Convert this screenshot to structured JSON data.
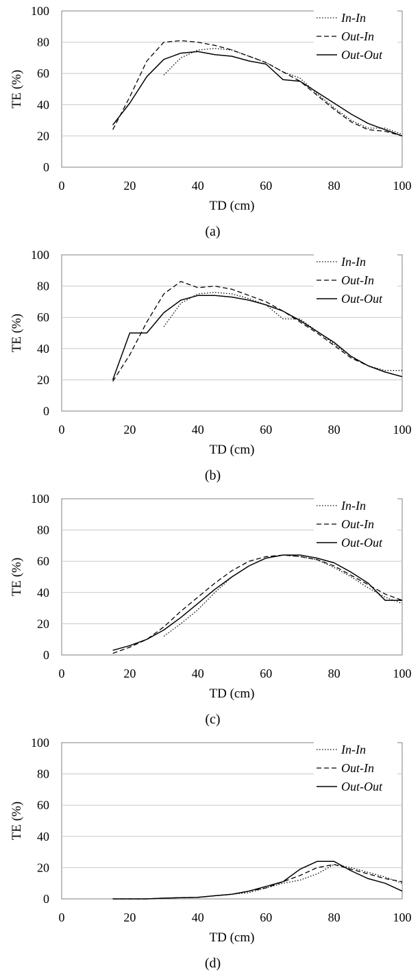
{
  "chart_data": [
    {
      "type": "line",
      "caption": "(a)",
      "xlabel": "TD (cm)",
      "ylabel": "TE (%)",
      "xlim": [
        0,
        100
      ],
      "ylim": [
        0,
        100
      ],
      "xticks": [
        "0",
        "20",
        "40",
        "60",
        "80",
        "100"
      ],
      "yticks": [
        "0",
        "20",
        "40",
        "60",
        "80",
        "100"
      ],
      "grid": "horizontal",
      "legend": "top-right",
      "series": [
        {
          "name": "In-In",
          "style": "dotted",
          "x": [
            30,
            35,
            40,
            45,
            50,
            55,
            60,
            65,
            70,
            75,
            80,
            85,
            90,
            95,
            100
          ],
          "y": [
            59,
            70,
            75,
            76,
            75,
            71,
            67,
            61,
            57,
            47,
            38,
            30,
            25,
            25,
            21
          ]
        },
        {
          "name": "Out-In",
          "style": "dashed",
          "x": [
            15,
            20,
            25,
            30,
            35,
            40,
            45,
            50,
            55,
            60,
            65,
            70,
            75,
            80,
            85,
            90,
            95,
            100
          ],
          "y": [
            24,
            45,
            68,
            80,
            81,
            80,
            78,
            75,
            71,
            67,
            61,
            55,
            46,
            37,
            29,
            24,
            23,
            20
          ]
        },
        {
          "name": "Out-Out",
          "style": "solid",
          "x": [
            15,
            20,
            25,
            30,
            35,
            40,
            45,
            50,
            55,
            60,
            65,
            70,
            75,
            80,
            85,
            90,
            95,
            100
          ],
          "y": [
            27,
            41,
            58,
            69,
            73,
            74,
            72,
            71,
            68,
            66,
            56,
            55,
            48,
            41,
            34,
            28,
            24,
            20
          ]
        }
      ]
    },
    {
      "type": "line",
      "caption": "(b)",
      "xlabel": "TD (cm)",
      "ylabel": "TE (%)",
      "xlim": [
        0,
        100
      ],
      "ylim": [
        0,
        100
      ],
      "xticks": [
        "0",
        "20",
        "40",
        "60",
        "80",
        "100"
      ],
      "yticks": [
        "0",
        "20",
        "40",
        "60",
        "80",
        "100"
      ],
      "grid": "horizontal",
      "legend": "top-right",
      "series": [
        {
          "name": "In-In",
          "style": "dotted",
          "x": [
            30,
            35,
            40,
            45,
            50,
            55,
            60,
            65,
            70,
            75,
            80,
            85,
            90,
            95,
            100
          ],
          "y": [
            54,
            69,
            75,
            76,
            75,
            72,
            68,
            59,
            59,
            51,
            43,
            35,
            29,
            26,
            26
          ]
        },
        {
          "name": "Out-In",
          "style": "dashed",
          "x": [
            15,
            20,
            25,
            30,
            35,
            40,
            45,
            50,
            55,
            60,
            65,
            70,
            75,
            80,
            85,
            90,
            95,
            100
          ],
          "y": [
            19,
            36,
            57,
            75,
            83,
            79,
            80,
            78,
            74,
            70,
            64,
            57,
            50,
            42,
            34,
            29,
            25,
            22
          ]
        },
        {
          "name": "Out-Out",
          "style": "solid",
          "x": [
            15,
            20,
            25,
            30,
            35,
            40,
            45,
            50,
            55,
            60,
            65,
            70,
            75,
            80,
            85,
            90,
            95,
            100
          ],
          "y": [
            20,
            50,
            50,
            63,
            71,
            74,
            74,
            73,
            71,
            68,
            64,
            58,
            51,
            44,
            35,
            29,
            25,
            22
          ]
        }
      ]
    },
    {
      "type": "line",
      "caption": "(c)",
      "xlabel": "TD (cm)",
      "ylabel": "TE (%)",
      "xlim": [
        0,
        100
      ],
      "ylim": [
        0,
        100
      ],
      "xticks": [
        "0",
        "20",
        "40",
        "60",
        "80",
        "100"
      ],
      "yticks": [
        "0",
        "20",
        "40",
        "60",
        "80",
        "100"
      ],
      "grid": "horizontal",
      "legend": "top-right",
      "series": [
        {
          "name": "In-In",
          "style": "dotted",
          "x": [
            30,
            35,
            40,
            45,
            50,
            55,
            60,
            65,
            70,
            75,
            80,
            85,
            90,
            95,
            100
          ],
          "y": [
            12,
            20,
            29,
            40,
            50,
            57,
            62,
            64,
            63,
            61,
            56,
            50,
            43,
            37,
            33
          ]
        },
        {
          "name": "Out-In",
          "style": "dashed",
          "x": [
            15,
            20,
            25,
            30,
            35,
            40,
            45,
            50,
            55,
            60,
            65,
            70,
            75,
            80,
            85,
            90,
            95,
            100
          ],
          "y": [
            1,
            5,
            10,
            18,
            28,
            37,
            46,
            54,
            60,
            63,
            64,
            63,
            61,
            57,
            51,
            45,
            39,
            35
          ]
        },
        {
          "name": "Out-Out",
          "style": "solid",
          "x": [
            15,
            20,
            25,
            30,
            35,
            40,
            45,
            50,
            55,
            60,
            65,
            70,
            75,
            80,
            85,
            90,
            95,
            100
          ],
          "y": [
            3,
            6,
            10,
            16,
            24,
            33,
            42,
            50,
            57,
            62,
            64,
            64,
            62,
            59,
            53,
            46,
            35,
            35
          ]
        }
      ]
    },
    {
      "type": "line",
      "caption": "(d)",
      "xlabel": "TD (cm)",
      "ylabel": "TE (%)",
      "xlim": [
        0,
        100
      ],
      "ylim": [
        0,
        100
      ],
      "xticks": [
        "0",
        "20",
        "40",
        "60",
        "80",
        "100"
      ],
      "yticks": [
        "0",
        "20",
        "40",
        "60",
        "80",
        "100"
      ],
      "grid": "horizontal",
      "legend": "top-right",
      "series": [
        {
          "name": "In-In",
          "style": "dotted",
          "x": [
            15,
            20,
            25,
            30,
            35,
            40,
            45,
            50,
            55,
            60,
            65,
            70,
            75,
            80,
            85,
            90,
            95,
            100
          ],
          "y": [
            0,
            0,
            0,
            0.5,
            0.8,
            1,
            2,
            3,
            4,
            7,
            10,
            12,
            16,
            22,
            20,
            17,
            14,
            10
          ]
        },
        {
          "name": "Out-In",
          "style": "dashed",
          "x": [
            15,
            20,
            25,
            30,
            35,
            40,
            45,
            50,
            55,
            60,
            65,
            70,
            75,
            80,
            85,
            90,
            95,
            100
          ],
          "y": [
            0,
            0,
            0,
            0.5,
            0.8,
            1,
            2,
            3,
            5,
            7,
            11,
            15,
            20,
            22,
            19,
            16,
            13,
            11
          ]
        },
        {
          "name": "Out-Out",
          "style": "solid",
          "x": [
            15,
            20,
            25,
            30,
            35,
            40,
            45,
            50,
            55,
            60,
            65,
            70,
            75,
            80,
            85,
            90,
            95,
            100
          ],
          "y": [
            0,
            0,
            0,
            0.5,
            0.8,
            1,
            2,
            3,
            5,
            8,
            11,
            19,
            24,
            24,
            18,
            13,
            10,
            5
          ]
        }
      ]
    }
  ]
}
